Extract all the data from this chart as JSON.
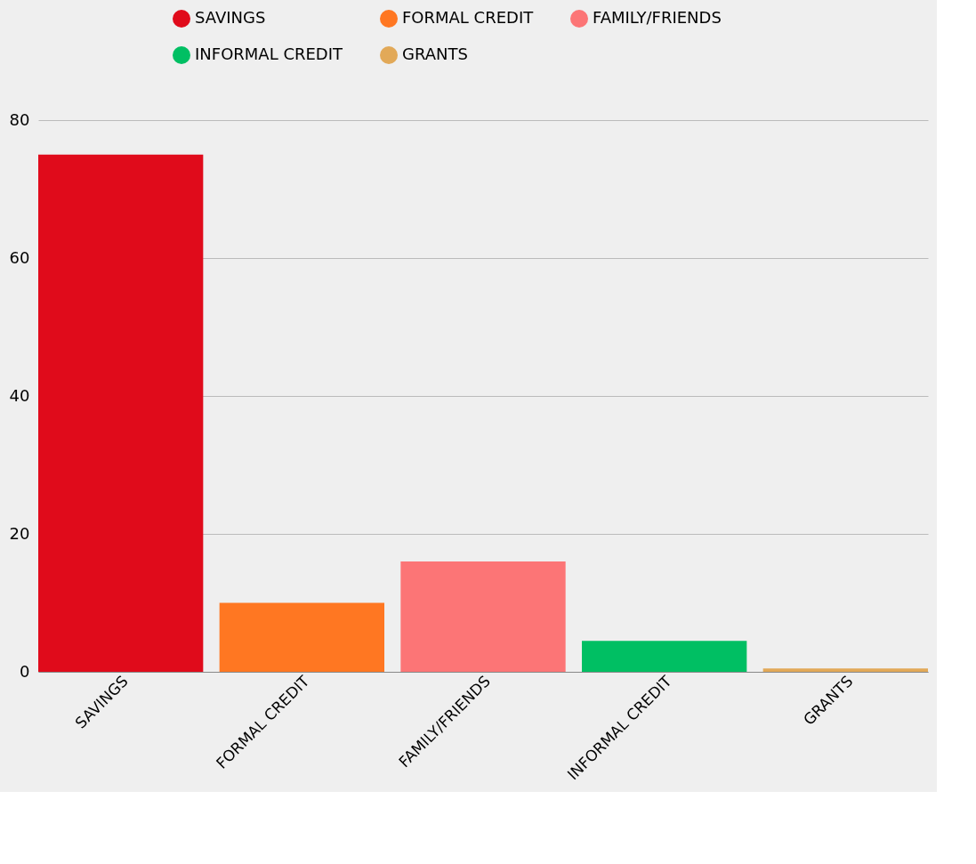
{
  "chart_data": {
    "type": "bar",
    "categories": [
      "SAVINGS",
      "FORMAL CREDIT",
      "FAMILY/FRIENDS",
      "INFORMAL CREDIT",
      "GRANTS"
    ],
    "series": [
      {
        "name": "SAVINGS",
        "color": "#e00b1b",
        "values": [
          75,
          null,
          null,
          null,
          null
        ]
      },
      {
        "name": "FORMAL CREDIT",
        "color": "#ff7722",
        "values": [
          null,
          10,
          null,
          null,
          null
        ]
      },
      {
        "name": "FAMILY/FRIENDS",
        "color": "#fc7576",
        "values": [
          null,
          null,
          16,
          null,
          null
        ]
      },
      {
        "name": "INFORMAL CREDIT",
        "color": "#00bf63",
        "values": [
          null,
          null,
          null,
          4.5,
          null
        ]
      },
      {
        "name": "GRANTS",
        "color": "#e2a958",
        "values": [
          null,
          null,
          null,
          null,
          0.5
        ]
      }
    ],
    "ylim": [
      0,
      80
    ],
    "yticks": [
      0,
      20,
      40,
      60,
      80
    ],
    "grid": "y",
    "legend": "top"
  }
}
